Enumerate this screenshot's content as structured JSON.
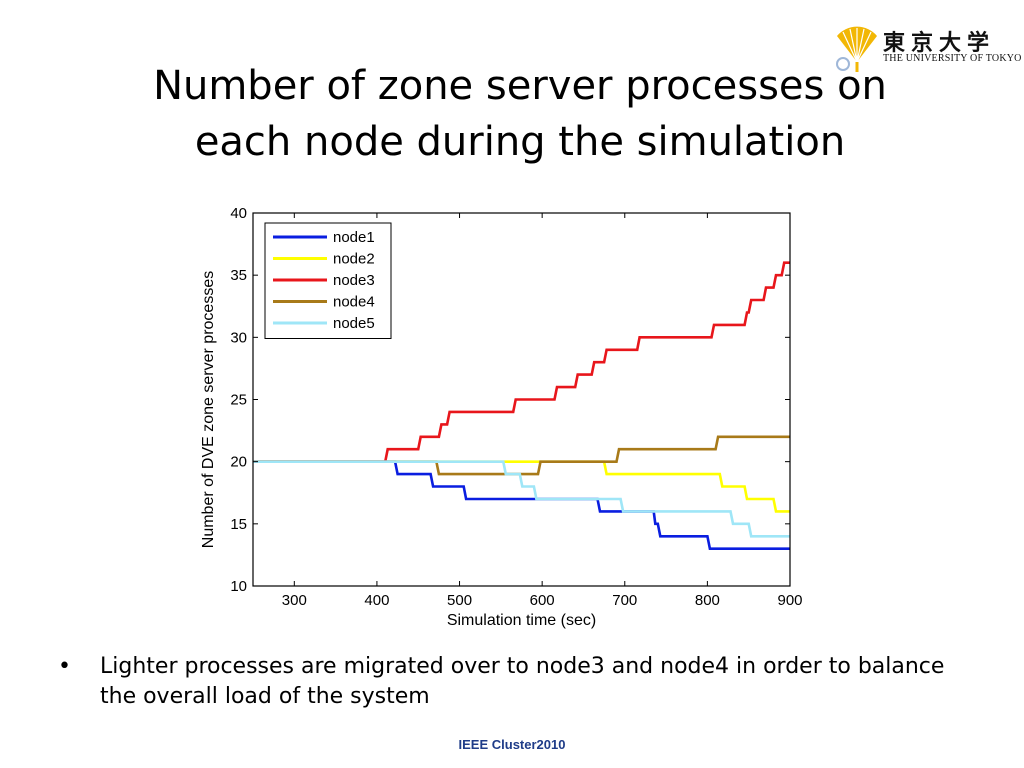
{
  "slide": {
    "title_line1": "Number of zone server processes on",
    "title_line2": "each node during the simulation",
    "logo": {
      "japanese": "東京大学",
      "english": "THE UNIVERSITY OF TOKYO",
      "colors": {
        "ginkgo": "#f2b705"
      }
    },
    "bullet_symbol": "•",
    "bullet_text": "Lighter processes are migrated over to node3 and node4 in order to balance the overall load of the system",
    "footer": "IEEE Cluster2010",
    "footer_color": "#1f3c88"
  },
  "chart_data": {
    "type": "line",
    "xlabel": "Simulation time (sec)",
    "ylabel": "Number of DVE zone server processes",
    "xlim": [
      250,
      900
    ],
    "ylim": [
      10,
      40
    ],
    "xticks": [
      300,
      400,
      500,
      600,
      700,
      800,
      900
    ],
    "yticks": [
      10,
      15,
      20,
      25,
      30,
      35,
      40
    ],
    "grid": false,
    "legend_position": "top-left",
    "series": [
      {
        "name": "node1",
        "color": "#0a1ee0",
        "points": [
          [
            250,
            20
          ],
          [
            422,
            20
          ],
          [
            425,
            19
          ],
          [
            465,
            19
          ],
          [
            468,
            18
          ],
          [
            505,
            18
          ],
          [
            508,
            17
          ],
          [
            667,
            17
          ],
          [
            670,
            16
          ],
          [
            735,
            16
          ],
          [
            737,
            15
          ],
          [
            740,
            15
          ],
          [
            743,
            14
          ],
          [
            800,
            14
          ],
          [
            803,
            13
          ],
          [
            900,
            13
          ]
        ]
      },
      {
        "name": "node2",
        "color": "#ffff00",
        "points": [
          [
            250,
            20
          ],
          [
            675,
            20
          ],
          [
            678,
            19
          ],
          [
            815,
            19
          ],
          [
            818,
            18
          ],
          [
            845,
            18
          ],
          [
            848,
            17
          ],
          [
            880,
            17
          ],
          [
            883,
            16
          ],
          [
            900,
            16
          ]
        ]
      },
      {
        "name": "node3",
        "color": "#e8161b",
        "points": [
          [
            250,
            20
          ],
          [
            410,
            20
          ],
          [
            413,
            21
          ],
          [
            450,
            21
          ],
          [
            453,
            22
          ],
          [
            475,
            22
          ],
          [
            478,
            23
          ],
          [
            485,
            23
          ],
          [
            488,
            24
          ],
          [
            565,
            24
          ],
          [
            568,
            25
          ],
          [
            615,
            25
          ],
          [
            618,
            26
          ],
          [
            640,
            26
          ],
          [
            643,
            27
          ],
          [
            660,
            27
          ],
          [
            663,
            28
          ],
          [
            675,
            28
          ],
          [
            678,
            29
          ],
          [
            715,
            29
          ],
          [
            718,
            30
          ],
          [
            805,
            30
          ],
          [
            808,
            31
          ],
          [
            845,
            31
          ],
          [
            848,
            32
          ],
          [
            850,
            32
          ],
          [
            853,
            33
          ],
          [
            868,
            33
          ],
          [
            871,
            34
          ],
          [
            880,
            34
          ],
          [
            883,
            35
          ],
          [
            890,
            35
          ],
          [
            893,
            36
          ],
          [
            900,
            36
          ]
        ]
      },
      {
        "name": "node4",
        "color": "#a87a19",
        "points": [
          [
            250,
            20
          ],
          [
            472,
            20
          ],
          [
            475,
            19
          ],
          [
            555,
            19
          ],
          [
            558,
            19
          ],
          [
            595,
            19
          ],
          [
            598,
            20
          ],
          [
            690,
            20
          ],
          [
            693,
            21
          ],
          [
            810,
            21
          ],
          [
            813,
            22
          ],
          [
            900,
            22
          ]
        ]
      },
      {
        "name": "node5",
        "color": "#9fe6f7",
        "points": [
          [
            250,
            20
          ],
          [
            553,
            20
          ],
          [
            556,
            19
          ],
          [
            573,
            19
          ],
          [
            576,
            18
          ],
          [
            590,
            18
          ],
          [
            593,
            17
          ],
          [
            695,
            17
          ],
          [
            698,
            16
          ],
          [
            828,
            16
          ],
          [
            831,
            15
          ],
          [
            850,
            15
          ],
          [
            853,
            14
          ],
          [
            900,
            14
          ]
        ]
      }
    ]
  }
}
